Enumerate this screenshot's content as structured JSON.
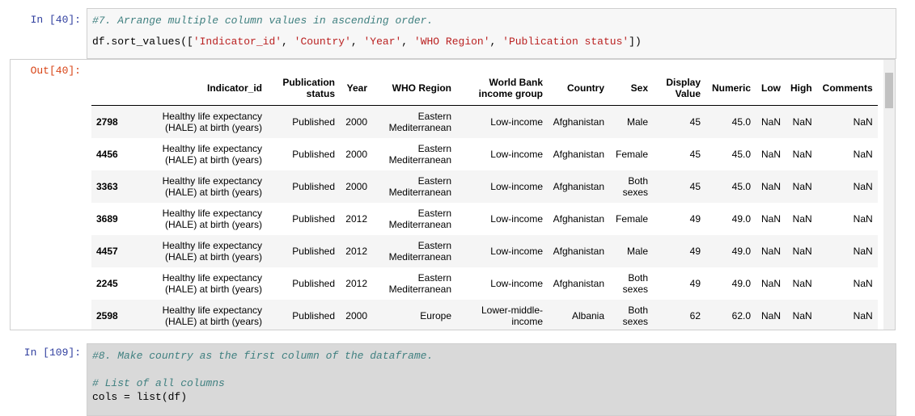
{
  "cells": [
    {
      "prompt": "In [40]:",
      "lines": [
        [
          {
            "text": "#7. Arrange multiple column values in ascending order.",
            "kind": "comment"
          }
        ],
        [
          {
            "text": "df.sort_values(["
          },
          {
            "text": "'Indicator_id'",
            "kind": "string"
          },
          {
            "text": ", "
          },
          {
            "text": "'Country'",
            "kind": "string"
          },
          {
            "text": ", "
          },
          {
            "text": "'Year'",
            "kind": "string"
          },
          {
            "text": ", "
          },
          {
            "text": "'WHO Region'",
            "kind": "string"
          },
          {
            "text": ", "
          },
          {
            "text": "'Publication status'",
            "kind": "string"
          },
          {
            "text": "])"
          }
        ]
      ],
      "output": {
        "prompt": "Out[40]:",
        "table": {
          "columns": [
            "Indicator_id",
            "Publication status",
            "Year",
            "WHO Region",
            "World Bank income group",
            "Country",
            "Sex",
            "Display Value",
            "Numeric",
            "Low",
            "High",
            "Comments"
          ],
          "rows": [
            [
              "2798",
              "Healthy life expectancy (HALE) at birth (years)",
              "Published",
              "2000",
              "Eastern Mediterranean",
              "Low-income",
              "Afghanistan",
              "Male",
              "45",
              "45.0",
              "NaN",
              "NaN",
              "NaN"
            ],
            [
              "4456",
              "Healthy life expectancy (HALE) at birth (years)",
              "Published",
              "2000",
              "Eastern Mediterranean",
              "Low-income",
              "Afghanistan",
              "Female",
              "45",
              "45.0",
              "NaN",
              "NaN",
              "NaN"
            ],
            [
              "3363",
              "Healthy life expectancy (HALE) at birth (years)",
              "Published",
              "2000",
              "Eastern Mediterranean",
              "Low-income",
              "Afghanistan",
              "Both sexes",
              "45",
              "45.0",
              "NaN",
              "NaN",
              "NaN"
            ],
            [
              "3689",
              "Healthy life expectancy (HALE) at birth (years)",
              "Published",
              "2012",
              "Eastern Mediterranean",
              "Low-income",
              "Afghanistan",
              "Female",
              "49",
              "49.0",
              "NaN",
              "NaN",
              "NaN"
            ],
            [
              "4457",
              "Healthy life expectancy (HALE) at birth (years)",
              "Published",
              "2012",
              "Eastern Mediterranean",
              "Low-income",
              "Afghanistan",
              "Male",
              "49",
              "49.0",
              "NaN",
              "NaN",
              "NaN"
            ],
            [
              "2245",
              "Healthy life expectancy (HALE) at birth (years)",
              "Published",
              "2012",
              "Eastern Mediterranean",
              "Low-income",
              "Afghanistan",
              "Both sexes",
              "49",
              "49.0",
              "NaN",
              "NaN",
              "NaN"
            ],
            [
              "2598",
              "Healthy life expectancy (HALE) at birth (years)",
              "Published",
              "2000",
              "Europe",
              "Lower-middle-income",
              "Albania",
              "Both sexes",
              "62",
              "62.0",
              "NaN",
              "NaN",
              "NaN"
            ]
          ]
        }
      }
    },
    {
      "prompt": "In [109]:",
      "lines": [
        [
          {
            "text": "#8. Make country as the first column of the dataframe.",
            "kind": "comment"
          }
        ],
        [],
        [
          {
            "text": "# List of all columns",
            "kind": "comment"
          }
        ],
        [
          {
            "text": "cols = list(df)"
          }
        ]
      ]
    }
  ]
}
